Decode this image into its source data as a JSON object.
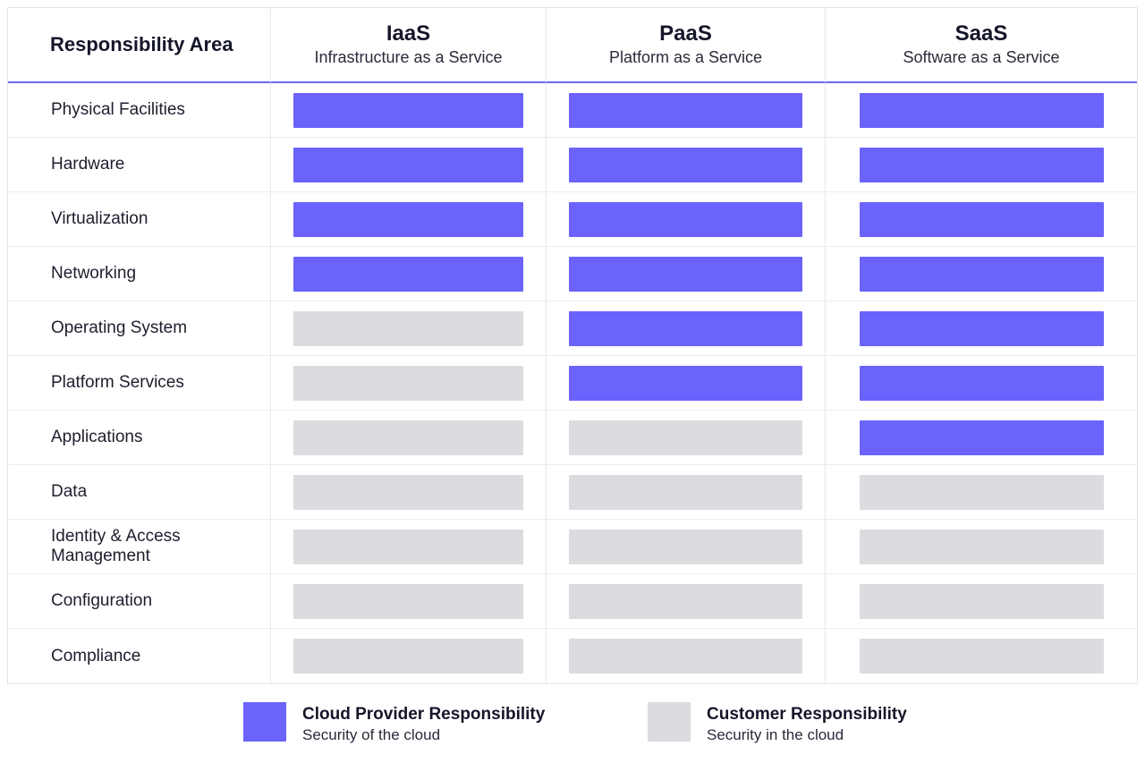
{
  "header": {
    "area_label": "Responsibility Area",
    "models": [
      {
        "name": "IaaS",
        "description": "Infrastructure as a Service"
      },
      {
        "name": "PaaS",
        "description": "Platform as a Service"
      },
      {
        "name": "SaaS",
        "description": "Software as a Service"
      }
    ]
  },
  "rows": [
    {
      "label": "Physical Facilities",
      "iaas": "provider",
      "paas": "provider",
      "saas": "provider"
    },
    {
      "label": "Hardware",
      "iaas": "provider",
      "paas": "provider",
      "saas": "provider"
    },
    {
      "label": "Virtualization",
      "iaas": "provider",
      "paas": "provider",
      "saas": "provider"
    },
    {
      "label": "Networking",
      "iaas": "provider",
      "paas": "provider",
      "saas": "provider"
    },
    {
      "label": "Operating System",
      "iaas": "customer",
      "paas": "provider",
      "saas": "provider"
    },
    {
      "label": "Platform Services",
      "iaas": "customer",
      "paas": "provider",
      "saas": "provider"
    },
    {
      "label": "Applications",
      "iaas": "customer",
      "paas": "customer",
      "saas": "provider"
    },
    {
      "label": "Data",
      "iaas": "customer",
      "paas": "customer",
      "saas": "customer"
    },
    {
      "label": "Identity & Access Management",
      "iaas": "customer",
      "paas": "customer",
      "saas": "customer"
    },
    {
      "label": "Configuration",
      "iaas": "customer",
      "paas": "customer",
      "saas": "customer"
    },
    {
      "label": "Compliance",
      "iaas": "customer",
      "paas": "customer",
      "saas": "customer"
    }
  ],
  "legend": {
    "provider": {
      "title": "Cloud Provider Responsibility",
      "subtitle": "Security of the cloud"
    },
    "customer": {
      "title": "Customer Responsibility",
      "subtitle": "Security in the cloud"
    }
  },
  "colors": {
    "provider": "#6b63fb",
    "customer": "#dcdce0",
    "header_rule": "#6c6cf2"
  }
}
